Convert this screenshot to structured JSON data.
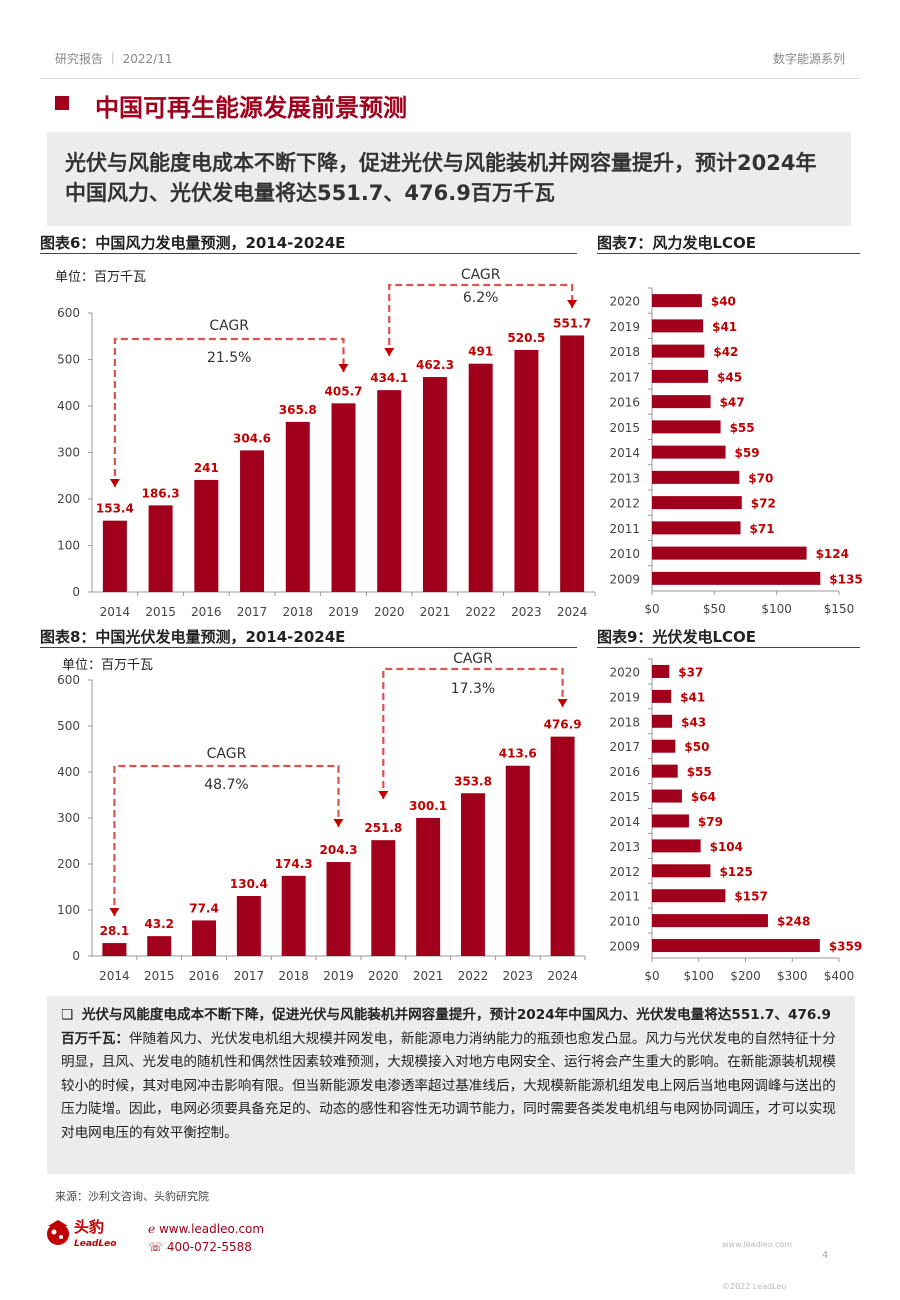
{
  "header": {
    "left": "研究报告 ｜ 2022/11",
    "right": "数字能源系列"
  },
  "page_title": "中国可再生能源发展前景预测",
  "lead": "光伏与风能度电成本不断下降，促进光伏与风能装机并网容量提升，预计2024年中国风力、光伏发电量将达551.7、476.9百万千瓦",
  "colors": {
    "bar": "#a0001c",
    "accent": "#c00000",
    "dash": "#d9534f"
  },
  "charts": {
    "fig6": {
      "title": "图表6：中国风力发电量预测，2014-2024E",
      "unit": "单位：百万千瓦"
    },
    "fig7": {
      "title": "图表7：风力发电LCOE"
    },
    "fig8": {
      "title": "图表8：中国光伏发电量预测，2014-2024E",
      "unit": "单位：百万千瓦"
    },
    "fig9": {
      "title": "图表9：光伏发电LCOE"
    }
  },
  "chart_data": [
    {
      "type": "bar",
      "title": "图表6：中国风力发电量预测，2014-2024E",
      "ylabel": "单位：百万千瓦",
      "categories": [
        "2014",
        "2015",
        "2016",
        "2017",
        "2018",
        "2019",
        "2020",
        "2021",
        "2022",
        "2023",
        "2024"
      ],
      "values": [
        153.4,
        186.3,
        241,
        304.6,
        365.8,
        405.7,
        434.1,
        462.3,
        491,
        520.5,
        551.7
      ],
      "labels": [
        "153.4",
        "186.3",
        "241",
        "304.6",
        "365.8",
        "405.7",
        "434.1",
        "462.3",
        "491",
        "520.5",
        "551.7"
      ],
      "ylim": [
        0,
        600
      ],
      "yticks": [
        0,
        100,
        200,
        300,
        400,
        500,
        600
      ],
      "annotations": [
        {
          "text": "CAGR",
          "value": "21.5%",
          "from": "2014",
          "to": "2019"
        },
        {
          "text": "CAGR",
          "value": "6.2%",
          "from": "2020",
          "to": "2024"
        }
      ]
    },
    {
      "type": "bar",
      "orientation": "horizontal",
      "title": "图表7：风力发电LCOE",
      "categories": [
        "2020",
        "2019",
        "2018",
        "2017",
        "2016",
        "2015",
        "2014",
        "2013",
        "2012",
        "2011",
        "2010",
        "2009"
      ],
      "values": [
        40,
        41,
        42,
        45,
        47,
        55,
        59,
        70,
        72,
        71,
        124,
        135
      ],
      "labels": [
        "$40",
        "$41",
        "$42",
        "$45",
        "$47",
        "$55",
        "$59",
        "$70",
        "$72",
        "$71",
        "$124",
        "$135"
      ],
      "xlim": [
        0,
        150
      ],
      "xticks": [
        0,
        50,
        100,
        150
      ],
      "xtick_labels": [
        "$0",
        "$50",
        "$100",
        "$150"
      ]
    },
    {
      "type": "bar",
      "title": "图表8：中国光伏发电量预测，2014-2024E",
      "ylabel": "单位：百万千瓦",
      "categories": [
        "2014",
        "2015",
        "2016",
        "2017",
        "2018",
        "2019",
        "2020",
        "2021",
        "2022",
        "2023",
        "2024"
      ],
      "values": [
        28.1,
        43.2,
        77.4,
        130.4,
        174.3,
        204.3,
        251.8,
        300.1,
        353.8,
        413.6,
        476.9
      ],
      "labels": [
        "28.1",
        "43.2",
        "77.4",
        "130.4",
        "174.3",
        "204.3",
        "251.8",
        "300.1",
        "353.8",
        "413.6",
        "476.9"
      ],
      "ylim": [
        0,
        600
      ],
      "yticks": [
        0,
        100,
        200,
        300,
        400,
        500,
        600
      ],
      "annotations": [
        {
          "text": "CAGR",
          "value": "48.7%",
          "from": "2014",
          "to": "2019"
        },
        {
          "text": "CAGR",
          "value": "17.3%",
          "from": "2020",
          "to": "2024"
        }
      ]
    },
    {
      "type": "bar",
      "orientation": "horizontal",
      "title": "图表9：光伏发电LCOE",
      "categories": [
        "2020",
        "2019",
        "2018",
        "2017",
        "2016",
        "2015",
        "2014",
        "2013",
        "2012",
        "2011",
        "2010",
        "2009"
      ],
      "values": [
        37,
        41,
        43,
        50,
        55,
        64,
        79,
        104,
        125,
        157,
        248,
        359
      ],
      "labels": [
        "$37",
        "$41",
        "$43",
        "$50",
        "$55",
        "$64",
        "$79",
        "$104",
        "$125",
        "$157",
        "$248",
        "$359"
      ],
      "xlim": [
        0,
        400
      ],
      "xticks": [
        0,
        100,
        200,
        300,
        400
      ],
      "xtick_labels": [
        "$0",
        "$100",
        "$200",
        "$300",
        "$400"
      ]
    }
  ],
  "body": {
    "bullet": "❑",
    "lead": "光伏与风能度电成本不断下降，促进光伏与风能装机并网容量提升，预计2024年中国风力、光伏发电量将达551.7、476.9百万千瓦：",
    "text": "伴随着风力、光伏发电机组大规模并网发电，新能源电力消纳能力的瓶颈也愈发凸显。风力与光伏发电的自然特征十分明显，且风、光发电的随机性和偶然性因素较难预测，大规模接入对地方电网安全、运行将会产生重大的影响。在新能源装机规模较小的时候，其对电网冲击影响有限。但当新能源发电渗透率超过基准线后，大规模新能源机组发电上网后当地电网调峰与送出的压力陡增。因此，电网必须要具备充足的、动态的感性和容性无功调节能力，同时需要各类发电机组与电网协同调压，才可以实现对电网电压的有效平衡控制。"
  },
  "source": "来源：沙利文咨询、头豹研究院",
  "footer": {
    "brand_cn": "头豹",
    "brand_en": "LeadLeo",
    "website": "www.leadleo.com",
    "phone": "400-072-5588",
    "site_small": "www.leadleo.com",
    "copyright": "©2022 LeadLeo",
    "page": "4"
  }
}
